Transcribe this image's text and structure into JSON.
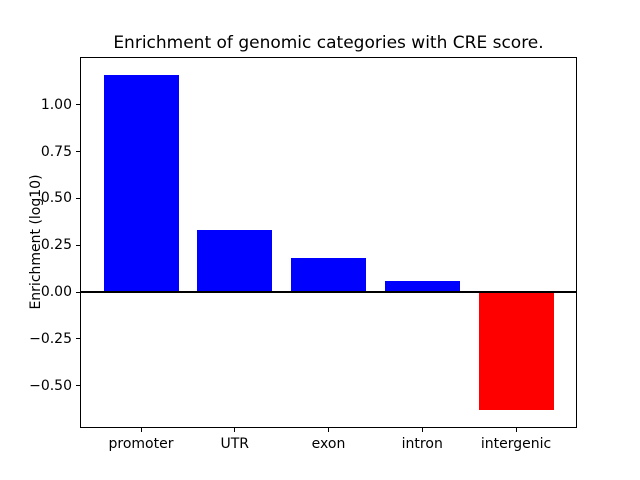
{
  "chart_data": {
    "type": "bar",
    "title": "Enrichment of genomic categories with CRE score.",
    "ylabel": "Enrichment (log10)",
    "xlabel": "",
    "categories": [
      "promoter",
      "UTR",
      "exon",
      "intron",
      "intergenic"
    ],
    "values": [
      1.16,
      0.33,
      0.18,
      0.06,
      -0.63
    ],
    "bar_colors": [
      "#0000ff",
      "#0000ff",
      "#0000ff",
      "#0000ff",
      "#ff0000"
    ],
    "positive_color": "#0000ff",
    "negative_color": "#ff0000",
    "axis_color": "#000000",
    "background_color": "#ffffff",
    "yticks": [
      1.0,
      0.75,
      0.5,
      0.25,
      0.0,
      -0.25,
      -0.5
    ],
    "ytick_labels": [
      "1.00",
      "0.75",
      "0.50",
      "0.25",
      "0.00",
      "−0.25",
      "−0.50"
    ],
    "ylim": [
      -0.72,
      1.25
    ],
    "xlim": [
      -0.64,
      4.64
    ],
    "bar_width": 0.8,
    "zero_line": true,
    "grid": false,
    "legend": null
  }
}
